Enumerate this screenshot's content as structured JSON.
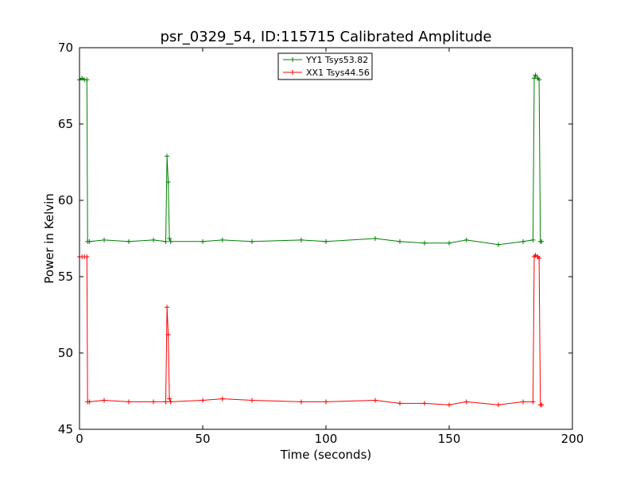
{
  "chart_data": {
    "type": "line",
    "title": "psr_0329_54, ID:115715 Calibrated Amplitude",
    "xlabel": "Time (seconds)",
    "ylabel": "Power in Kelvin",
    "xlim": [
      0,
      200
    ],
    "ylim": [
      45,
      70
    ],
    "xticks": [
      0,
      50,
      100,
      150,
      200
    ],
    "yticks": [
      45,
      50,
      55,
      60,
      65,
      70
    ],
    "grid": false,
    "legend_position": "top-center",
    "series": [
      {
        "name": "YY1 Tsys53.82",
        "color": "#008000",
        "marker": "+",
        "x": [
          0,
          1,
          2,
          3,
          3.3,
          4,
          10,
          20,
          30,
          35,
          35.5,
          36,
          36.5,
          37,
          50,
          58,
          70,
          90,
          100,
          120,
          130,
          140,
          150,
          157,
          170,
          180,
          184,
          184.5,
          185,
          186,
          186.5,
          187,
          187.5
        ],
        "y": [
          67.9,
          68.0,
          67.9,
          67.9,
          57.3,
          57.3,
          57.4,
          57.3,
          57.4,
          57.3,
          62.9,
          61.2,
          57.5,
          57.3,
          57.3,
          57.4,
          57.3,
          57.4,
          57.3,
          57.5,
          57.3,
          57.2,
          57.2,
          57.4,
          57.1,
          57.3,
          57.4,
          68.0,
          68.2,
          68.0,
          67.9,
          57.3,
          57.3
        ]
      },
      {
        "name": "XX1 Tsys44.56",
        "color": "#ff0000",
        "marker": "+",
        "x": [
          0,
          1,
          2,
          3,
          3.3,
          4,
          10,
          20,
          30,
          35,
          35.5,
          36,
          36.5,
          37,
          50,
          58,
          70,
          90,
          100,
          120,
          130,
          140,
          150,
          157,
          170,
          180,
          184,
          184.5,
          185,
          186,
          186.5,
          187,
          187.5
        ],
        "y": [
          56.3,
          56.3,
          56.3,
          56.3,
          46.8,
          46.8,
          46.9,
          46.8,
          46.8,
          46.8,
          53.0,
          51.2,
          47.0,
          46.8,
          46.9,
          47.0,
          46.9,
          46.8,
          46.8,
          46.9,
          46.7,
          46.7,
          46.6,
          46.8,
          46.6,
          46.8,
          46.8,
          56.3,
          56.4,
          56.3,
          56.2,
          46.6,
          46.6
        ]
      }
    ]
  }
}
